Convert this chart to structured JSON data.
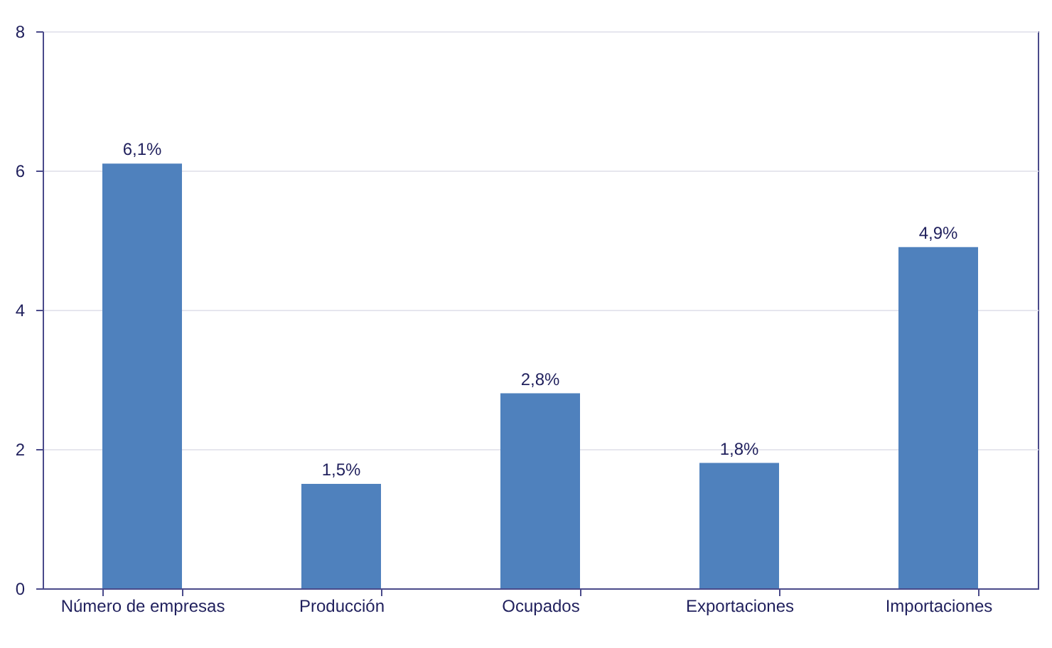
{
  "chart_data": {
    "type": "bar",
    "categories": [
      "Número de empresas",
      "Producción",
      "Ocupados",
      "Exportaciones",
      "Importaciones"
    ],
    "values": [
      6.1,
      1.5,
      2.8,
      1.8,
      4.9
    ],
    "value_labels": [
      "6,1%",
      "1,5%",
      "2,8%",
      "1,8%",
      "4,9%"
    ],
    "color": "#4f81bd",
    "ylim": [
      0,
      8
    ],
    "yticks": [
      0,
      2,
      4,
      6,
      8
    ],
    "grid": "y"
  }
}
